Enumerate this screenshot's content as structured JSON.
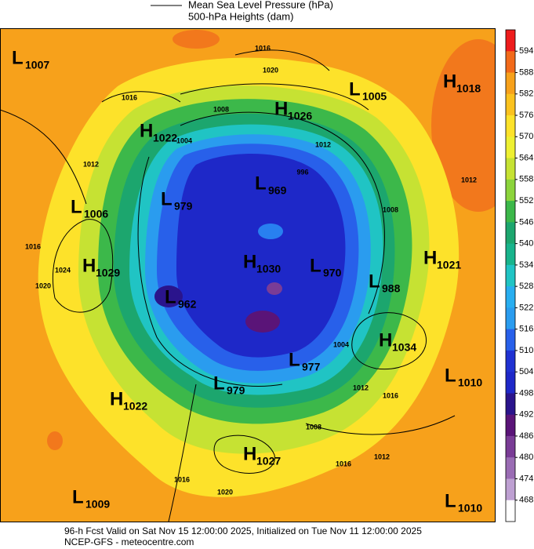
{
  "header": {
    "legend_mslp": "Mean Sea Level Pressure (hPa)",
    "legend_heights": "500-hPa Heights (dam)"
  },
  "centers": [
    {
      "letter": "L",
      "value": 1007
    },
    {
      "letter": "L",
      "value": 1005
    },
    {
      "letter": "H",
      "value": 1018
    },
    {
      "letter": "H",
      "value": 1026
    },
    {
      "letter": "H",
      "value": 1022
    },
    {
      "letter": "L",
      "value": 969
    },
    {
      "letter": "L",
      "value": 979
    },
    {
      "letter": "L",
      "value": 1006
    },
    {
      "letter": "H",
      "value": 1029
    },
    {
      "letter": "H",
      "value": 1030
    },
    {
      "letter": "L",
      "value": 970
    },
    {
      "letter": "L",
      "value": 988
    },
    {
      "letter": "H",
      "value": 1021
    },
    {
      "letter": "L",
      "value": 962
    },
    {
      "letter": "H",
      "value": 1034
    },
    {
      "letter": "L",
      "value": 977
    },
    {
      "letter": "L",
      "value": 1010
    },
    {
      "letter": "L",
      "value": 979
    },
    {
      "letter": "H",
      "value": 1022
    },
    {
      "letter": "H",
      "value": 1027
    },
    {
      "letter": "L",
      "value": 1009
    },
    {
      "letter": "L",
      "value": 1010
    }
  ],
  "isobar_labels": [
    1016,
    1020,
    1016,
    1008,
    1004,
    1012,
    996,
    1012,
    1016,
    1020,
    1024,
    1008,
    1012,
    1004,
    1012,
    1016,
    1008,
    1012,
    1016,
    1016,
    1020
  ],
  "colorbar": {
    "levels": [
      594,
      588,
      582,
      576,
      570,
      564,
      558,
      552,
      546,
      540,
      534,
      528,
      522,
      516,
      510,
      504,
      498,
      492,
      486,
      480,
      474,
      468
    ],
    "colors": [
      "#ee1c1c",
      "#f26a1a",
      "#f7a11b",
      "#fbc21e",
      "#fde22a",
      "#eef032",
      "#c6e233",
      "#8cd43c",
      "#3cb84a",
      "#1ca66e",
      "#18b48c",
      "#20c4c4",
      "#28aef0",
      "#2a9cef",
      "#2860ea",
      "#2032d2",
      "#1e28c8",
      "#2a148c",
      "#5a1478",
      "#7a3c96",
      "#9a6cb4",
      "#bea0d2",
      "#ffffff"
    ]
  },
  "footer": {
    "line1": "96-h Fcst Valid on Sat Nov 15 12:00:00 2025, Initialized on Tue Nov 11 12:00:00 2025",
    "line2": "NCEP-GFS  - meteocentre.com"
  }
}
